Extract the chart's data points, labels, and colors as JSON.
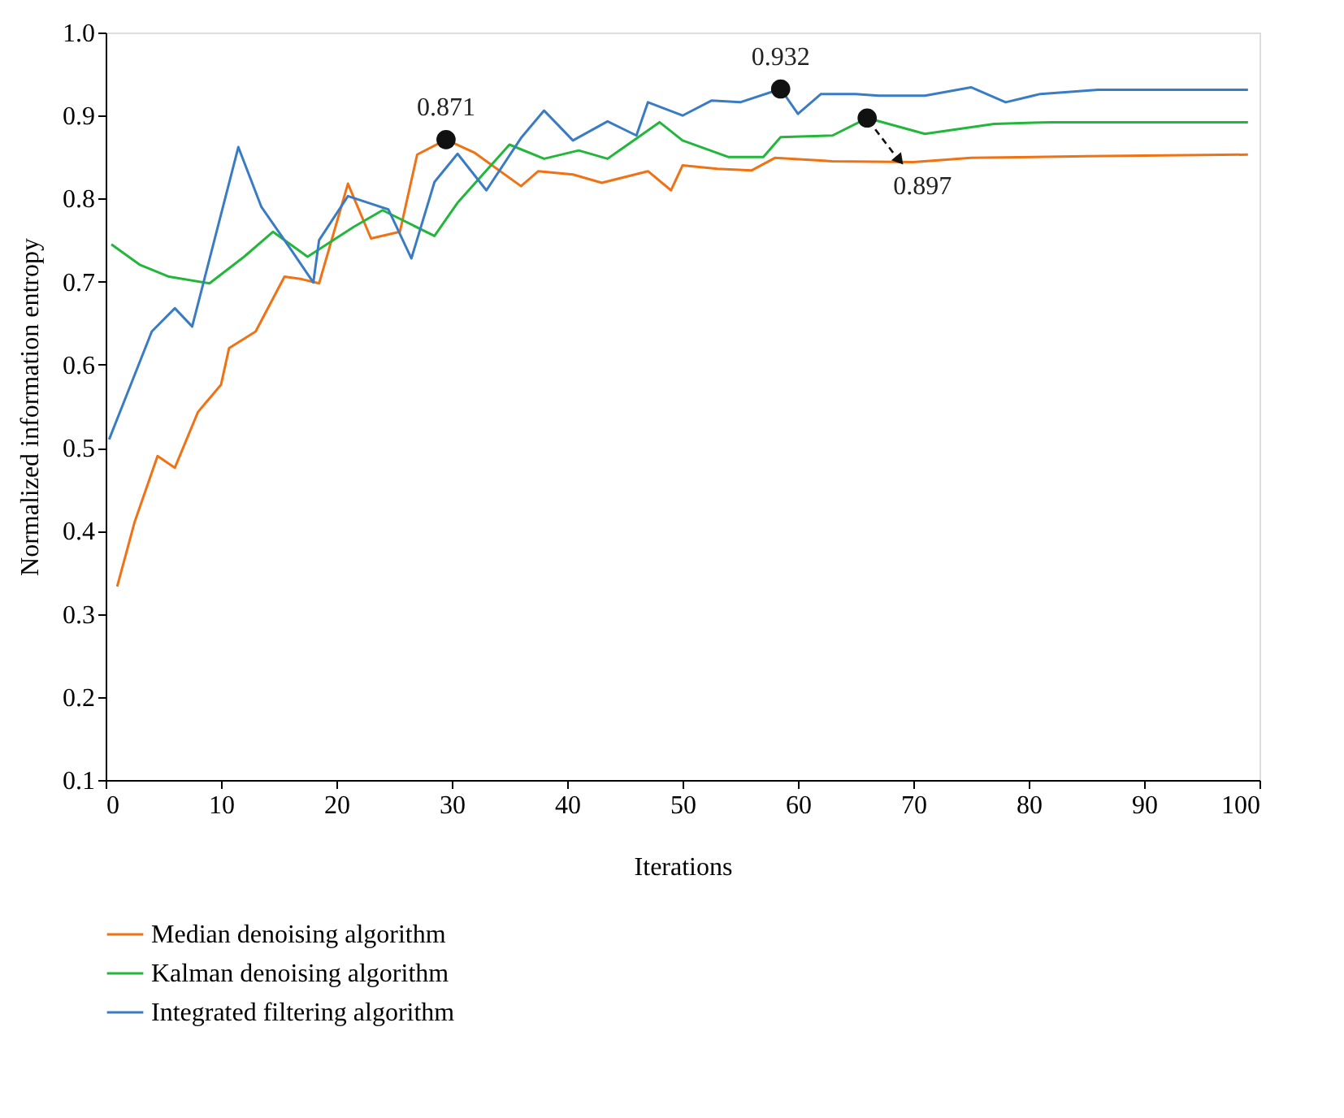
{
  "chart_data": {
    "type": "line",
    "xlabel": "Iterations",
    "ylabel": "Normalized information entropy",
    "xlim": [
      0,
      100
    ],
    "xticks": [
      0,
      10,
      20,
      30,
      40,
      50,
      60,
      70,
      80,
      90,
      100
    ],
    "ylim": [
      0.1,
      1.0
    ],
    "yticks": [
      0.1,
      0.2,
      0.3,
      0.4,
      0.5,
      0.6,
      0.7,
      0.8,
      0.9,
      {
        "value": 1.0,
        "label": "1.0"
      }
    ],
    "grid": false,
    "legend": "bottom",
    "marker": "none",
    "line_style": "solid",
    "series": [
      {
        "name": "Median denoising algorithm",
        "color": "#f07214",
        "x": [
          1,
          2.5,
          4.5,
          6,
          8,
          10,
          10.7,
          13,
          15.5,
          17,
          18.5,
          21,
          23,
          25.5,
          27,
          29.5,
          32,
          36,
          37.5,
          40.5,
          43,
          47,
          49,
          50,
          53,
          56,
          58,
          63,
          70,
          75,
          85,
          99
        ],
        "values": [
          0.333,
          0.41,
          0.49,
          0.476,
          0.543,
          0.576,
          0.62,
          0.64,
          0.706,
          0.703,
          0.698,
          0.818,
          0.752,
          0.76,
          0.853,
          0.871,
          0.855,
          0.815,
          0.833,
          0.829,
          0.819,
          0.833,
          0.81,
          0.84,
          0.836,
          0.834,
          0.849,
          0.845,
          0.844,
          0.849,
          0.851,
          0.853
        ]
      },
      {
        "name": "Kalman denoising algorithm",
        "color": "#22b73a",
        "x": [
          0.5,
          3,
          5.5,
          9,
          12,
          14.5,
          17.5,
          21.5,
          24,
          28.5,
          30.5,
          35,
          38,
          41,
          43.5,
          48,
          50,
          54,
          57,
          58.5,
          63,
          66,
          71,
          77,
          82,
          99
        ],
        "values": [
          0.745,
          0.72,
          0.706,
          0.698,
          0.73,
          0.76,
          0.73,
          0.766,
          0.786,
          0.755,
          0.795,
          0.865,
          0.848,
          0.858,
          0.848,
          0.892,
          0.87,
          0.85,
          0.85,
          0.874,
          0.876,
          0.897,
          0.878,
          0.89,
          0.892,
          0.892
        ]
      },
      {
        "name": "Integrated filtering algorithm",
        "color": "#3a7cc4",
        "x": [
          0.3,
          4,
          6,
          7.5,
          11.5,
          13.5,
          16,
          18,
          18.5,
          21,
          24.5,
          26.5,
          28.5,
          30.5,
          33,
          36,
          38,
          40.5,
          43.5,
          46,
          47,
          50,
          52.5,
          55,
          58.5,
          60,
          62,
          65,
          67,
          71,
          75,
          78,
          81,
          86,
          99
        ],
        "values": [
          0.51,
          0.64,
          0.668,
          0.646,
          0.862,
          0.79,
          0.74,
          0.699,
          0.75,
          0.803,
          0.787,
          0.728,
          0.82,
          0.854,
          0.81,
          0.873,
          0.906,
          0.87,
          0.893,
          0.876,
          0.916,
          0.9,
          0.918,
          0.916,
          0.932,
          0.902,
          0.926,
          0.926,
          0.924,
          0.924,
          0.934,
          0.916,
          0.926,
          0.931,
          0.931
        ]
      }
    ],
    "annotations": [
      {
        "text": "0.871",
        "x": 29.5,
        "y": 0.871
      },
      {
        "text": "0.932",
        "x": 58.5,
        "y": 0.932
      },
      {
        "text": "0.897",
        "x": 66,
        "y": 0.897
      }
    ]
  }
}
